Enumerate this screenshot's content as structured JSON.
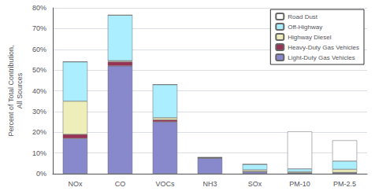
{
  "chart_data": {
    "type": "bar",
    "stacked": true,
    "categories": [
      "NOx",
      "CO",
      "VOCs",
      "NH3",
      "SOx",
      "PM-10",
      "PM-2.5"
    ],
    "series": [
      {
        "name": "Light-Duty Gas Vehicles",
        "color": "#8888cc",
        "values": [
          17.0,
          52.0,
          25.0,
          7.5,
          1.0,
          0.4,
          0.5
        ]
      },
      {
        "name": "Heavy-Duty Gas Vehicles",
        "color": "#993355",
        "values": [
          2.0,
          2.0,
          1.0,
          0.1,
          0.05,
          0.05,
          0.1
        ]
      },
      {
        "name": "Highway Diesel",
        "color": "#eeeebb",
        "values": [
          16.0,
          0.5,
          1.0,
          0.2,
          0.8,
          0.5,
          1.5
        ]
      },
      {
        "name": "Off-Highway",
        "color": "#aaeeff",
        "values": [
          19.0,
          22.0,
          16.0,
          0.05,
          2.7,
          1.4,
          4.0
        ]
      },
      {
        "name": "Road Dust",
        "color": "#ffffff",
        "values": [
          0,
          0,
          0,
          0,
          0,
          18.0,
          10.0
        ]
      }
    ],
    "ylabel": "Percent of Total Contribution,\nAll Sources",
    "ylim": [
      0,
      80
    ],
    "yticks": [
      {
        "value": 0,
        "label": "0%"
      },
      {
        "value": 10,
        "label": "10%"
      },
      {
        "value": 20,
        "label": "20%"
      },
      {
        "value": 30,
        "label": "30%"
      },
      {
        "value": 40,
        "label": "40%"
      },
      {
        "value": 50,
        "label": "50%"
      },
      {
        "value": 60,
        "label": "60%"
      },
      {
        "value": 70,
        "label": "70%"
      },
      {
        "value": 80,
        "label": "80%"
      }
    ],
    "grid": true,
    "legend": "upper right"
  }
}
